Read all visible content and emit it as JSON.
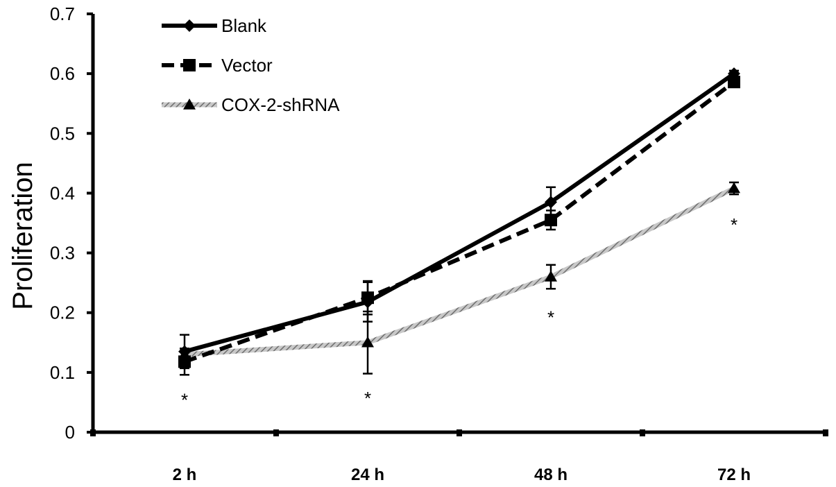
{
  "chart_data": {
    "type": "line",
    "title": "",
    "xlabel": "",
    "ylabel": "Proliferation",
    "categories": [
      "2 h",
      "24 h",
      "48 h",
      "72 h"
    ],
    "ylim": [
      0,
      0.7
    ],
    "yticks": [
      0,
      0.1,
      0.2,
      0.3,
      0.4,
      0.5,
      0.6,
      0.7
    ],
    "ytick_labels": [
      "0",
      "0.1",
      "0.2",
      "0.3",
      "0.4",
      "0.5",
      "0.6",
      "0.7"
    ],
    "grid": false,
    "legend_position": "top-left",
    "series": [
      {
        "name": "Blank",
        "values": [
          0.135,
          0.218,
          0.385,
          0.6
        ],
        "errors": [
          0.028,
          0.033,
          0.025,
          0.005
        ],
        "color": "#000000",
        "line_style": "solid",
        "marker": "diamond"
      },
      {
        "name": "Vector",
        "values": [
          0.118,
          0.225,
          0.355,
          0.586
        ],
        "errors": [
          0.022,
          0.028,
          0.016,
          0.008
        ],
        "color": "#000000",
        "line_style": "dashed",
        "marker": "square"
      },
      {
        "name": "COX-2-shRNA",
        "values": [
          0.13,
          0.15,
          0.26,
          0.408
        ],
        "errors": [
          0.01,
          0.052,
          0.02,
          0.01
        ],
        "color": "#8c8c8c",
        "line_style": "hatched",
        "marker": "triangle"
      }
    ],
    "annotations": [
      {
        "category": "2 h",
        "text": "*",
        "y": 0.062
      },
      {
        "category": "24 h",
        "text": "*",
        "y": 0.065
      },
      {
        "category": "48 h",
        "text": "*",
        "y": 0.2
      },
      {
        "category": "72 h",
        "text": "*",
        "y": 0.355
      }
    ]
  }
}
